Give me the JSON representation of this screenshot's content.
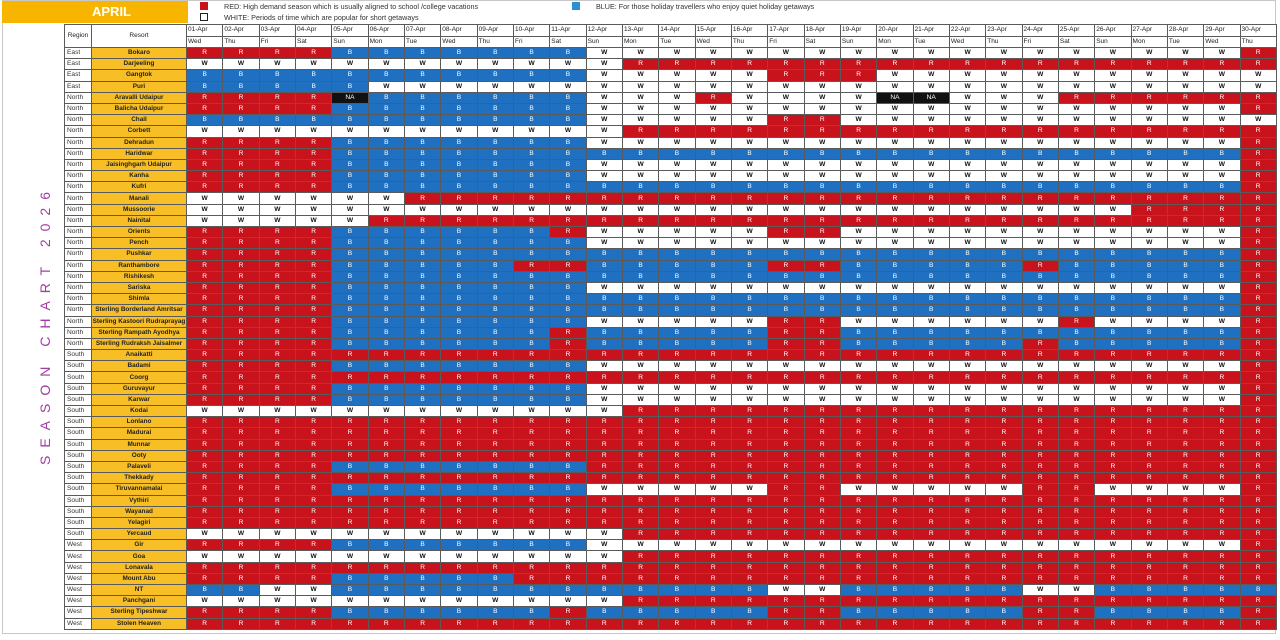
{
  "month": "APRIL",
  "legend": {
    "red": "RED: High demand season which is usually aligned to school /college vacations",
    "blue": "BLUE: For those holiday travellers who enjoy quiet holiday getaways",
    "white": "WHITE: Periods of time which are popular for short getaways"
  },
  "side_title": "SEASON CHART 2026",
  "colors": {
    "R": "#c8121c",
    "B": "#1f70c1",
    "W": "#ffffff",
    "NA": "#111111",
    "header_gold": "#f7b500",
    "resort_gold": "#f7be26"
  },
  "header": {
    "region": "Region",
    "resort": "Resort"
  },
  "dates": [
    "01-Apr",
    "02-Apr",
    "03-Apr",
    "04-Apr",
    "05-Apr",
    "06-Apr",
    "07-Apr",
    "08-Apr",
    "09-Apr",
    "10-Apr",
    "11-Apr",
    "12-Apr",
    "13-Apr",
    "14-Apr",
    "15-Apr",
    "16-Apr",
    "17-Apr",
    "18-Apr",
    "19-Apr",
    "20-Apr",
    "21-Apr",
    "22-Apr",
    "23-Apr",
    "24-Apr",
    "25-Apr",
    "26-Apr",
    "27-Apr",
    "28-Apr",
    "29-Apr",
    "30-Apr"
  ],
  "days": [
    "Wed",
    "Thu",
    "Fri",
    "Sat",
    "Sun",
    "Mon",
    "Tue",
    "Wed",
    "Thu",
    "Fri",
    "Sat",
    "Sun",
    "Mon",
    "Tue",
    "Wed",
    "Thu",
    "Fri",
    "Sat",
    "Sun",
    "Mon",
    "Tue",
    "Wed",
    "Thu",
    "Fri",
    "Sat",
    "Sun",
    "Mon",
    "Tue",
    "Wed",
    "Thu"
  ],
  "rows": [
    {
      "region": "East",
      "resort": "Bokaro",
      "cells": "R R R R B B B B B B B W W W W W W W W W W W W W W W W W W R"
    },
    {
      "region": "East",
      "resort": "Darjeeling",
      "cells": "W W W W W W W W W W W W R R R R R R R R R R R R R R R R R R"
    },
    {
      "region": "East",
      "resort": "Gangtok",
      "cells": "B B B B B B B B B B B W W W W W R R R W W W W W W W W W W W"
    },
    {
      "region": "East",
      "resort": "Puri",
      "cells": "B B B B B W W W W W W W W W W W W W W W W W W W W W W W W W"
    },
    {
      "region": "North",
      "resort": "Aravalli Udaipur",
      "cells": "R R R R NA B B B B B B W W W R W W W W NA NA W W W R R R R R R"
    },
    {
      "region": "North",
      "resort": "Balicha Udaipur",
      "cells": "R R R R B B B B B B B W W W W W W W W W W W W W W W W W W R"
    },
    {
      "region": "North",
      "resort": "Chail",
      "cells": "B B B B B B B B B B B W W W W W R R W W W W W W W W W W W W"
    },
    {
      "region": "North",
      "resort": "Corbett",
      "cells": "W W W W W W W W W W W W R R R R R R R R R R R R R R R R R R"
    },
    {
      "region": "North",
      "resort": "Dehradun",
      "cells": "R R R R B B B B B B B W W W W W W W W W W W W W W W W W W R"
    },
    {
      "region": "North",
      "resort": "Haridwar",
      "cells": "R R R R B B B B B B B B B B B B B B B B B B B B B B B B B R"
    },
    {
      "region": "North",
      "resort": "Jaisinghgarh Udaipur",
      "cells": "R R R R B B B B B B B W W W W W W W W W W W W W W W W W W R"
    },
    {
      "region": "North",
      "resort": "Kanha",
      "cells": "R R R R B B B B B B B W W W W W W W W W W W W W W W W W W R"
    },
    {
      "region": "North",
      "resort": "Kufri",
      "cells": "R R R R B B B B B B B B B B B B B B B B B B B B B B B B B R"
    },
    {
      "region": "North",
      "resort": "Manali",
      "cells": "W W W W W W R R R R R R R R R R R R R R R R R R R R R R R R"
    },
    {
      "region": "North",
      "resort": "Mussoorie",
      "cells": "W W W W W W W W W W W W W W W W W W W W W W W W W W R R R R"
    },
    {
      "region": "North",
      "resort": "Nainital",
      "cells": "W W W W W R R R R R R R R R R R R R R R R R R R R R R R R R"
    },
    {
      "region": "North",
      "resort": "Orients",
      "cells": "R R R R B B B B B B R W W W W W R R W W W W W W W W W W W R"
    },
    {
      "region": "North",
      "resort": "Pench",
      "cells": "R R R R B B B B B B B W W W W W W W W W W W W W W W W W W R"
    },
    {
      "region": "North",
      "resort": "Pushkar",
      "cells": "R R R R B B B B B B B B B B B B B B B B B B B B B B B B B R"
    },
    {
      "region": "North",
      "resort": "Ranthambore",
      "cells": "R R R R B B B B B R R B B B B B R R B B B B B R B B B B B R"
    },
    {
      "region": "North",
      "resort": "Rishikesh",
      "cells": "R R R R B B B B B B B B B B B B B B B B B B B B B B B B B R"
    },
    {
      "region": "North",
      "resort": "Sariska",
      "cells": "R R R R B B B B B B B W W W W W W W W W W W W W W W W W W R"
    },
    {
      "region": "North",
      "resort": "Shimla",
      "cells": "R R R R B B B B B B B B B B B B B B B B B B B B B B B B B R"
    },
    {
      "region": "North",
      "resort": "Sterling Borderland Amritsar",
      "cells": "R R R R B B B B B B B B B B B B B B B B B B B B B B B B B R"
    },
    {
      "region": "North",
      "resort": "Sterling Kastoori Rudraprayag",
      "cells": "R R R R B B B B B B B W W W W W R R W W W W W W R W W W W R"
    },
    {
      "region": "North",
      "resort": "Sterling Rampath Ayodhya",
      "cells": "R R R R B B B B B B R B B B B B R R B B B B B B B B B B B R"
    },
    {
      "region": "North",
      "resort": "Sterling Rudraksh Jaisalmer",
      "cells": "R R R R B B B B B B R B B B B B R R B B B B B R B B B B B R"
    },
    {
      "region": "South",
      "resort": "Anaikatti",
      "cells": "R R R R R R R R R R R R R R R R R R R R R R R R R R R R R R"
    },
    {
      "region": "South",
      "resort": "Badami",
      "cells": "R R R R B B B B B B B W W W W W W W W W W W W W W W W W W R"
    },
    {
      "region": "South",
      "resort": "Coorg",
      "cells": "R R R R R R R R R R R R R R R R R R R R R R R R R R R R R R"
    },
    {
      "region": "South",
      "resort": "Guruvayur",
      "cells": "R R R R B B B B B B B W W W W W W W W W W W W W W W W W W R"
    },
    {
      "region": "South",
      "resort": "Karwar",
      "cells": "R R R R B B B B B B B W W W W W W W W W W W W W W W W W W R"
    },
    {
      "region": "South",
      "resort": "Kodai",
      "cells": "W W W W W W W W W W W W R R R R R R R R R R R R R R R R R R"
    },
    {
      "region": "South",
      "resort": "Lonlano",
      "cells": "R R R R R R R R R R R R R R R R R R R R R R R R R R R R R R"
    },
    {
      "region": "South",
      "resort": "Madurai",
      "cells": "R R R R R R R R R R R R R R R R R R R R R R R R R R R R R R"
    },
    {
      "region": "South",
      "resort": "Munnar",
      "cells": "R R R R R R R R R R R R R R R R R R R R R R R R R R R R R R"
    },
    {
      "region": "South",
      "resort": "Ooty",
      "cells": "R R R R R R R R R R R R R R R R R R R R R R R R R R R R R R"
    },
    {
      "region": "South",
      "resort": "Palaveli",
      "cells": "R R R R B B B B B B B R R R R R R R R R R R R R R R R R R R"
    },
    {
      "region": "South",
      "resort": "Thekkady",
      "cells": "R R R R R R R R R R R R R R R R R R R R R R R R R R R R R R"
    },
    {
      "region": "South",
      "resort": "Tiruvannamalai",
      "cells": "R R R R B B B B B B B W W W W W R R W W W W W R R W W W W R"
    },
    {
      "region": "South",
      "resort": "Vythiri",
      "cells": "R R R R R R R R R R R R R R R R R R R R R R R R R R R R R R"
    },
    {
      "region": "South",
      "resort": "Wayanad",
      "cells": "R R R R R R R R R R R R R R R R R R R R R R R R R R R R R R"
    },
    {
      "region": "South",
      "resort": "Yelagiri",
      "cells": "R R R R R R R R R R R R R R R R R R R R R R R R R R R R R R"
    },
    {
      "region": "South",
      "resort": "Yercaud",
      "cells": "W W W W W W W W W W W W R R R R R R R R R R R R R R R R R R"
    },
    {
      "region": "West",
      "resort": "Gir",
      "cells": "R R R R B B B B B B B W W W W W W W W W W W W W W W W W W R"
    },
    {
      "region": "West",
      "resort": "Goa",
      "cells": "W W W W W W W W W W W W R R R R R R R R R R R R R R R R R R"
    },
    {
      "region": "West",
      "resort": "Lonavala",
      "cells": "R R R R R R R R R R R R R R R R R R R R R R R R R R R R R R"
    },
    {
      "region": "West",
      "resort": "Mount Abu",
      "cells": "R R R R B B B B B R R R R R R R R R R R R R R R R R R R R R"
    },
    {
      "region": "West",
      "resort": "NT",
      "cells": "B B W W B B B B B B B B B B B B W W B B B B B W W B B B B B"
    },
    {
      "region": "West",
      "resort": "Panchgani",
      "cells": "W W W W W W W W W W W W R R R R R R R R R R R R R R R R R R"
    },
    {
      "region": "West",
      "resort": "Sterling Tipeshwar",
      "cells": "R R R R B B B B B B R B B B B B R R B B B B B R R B B B B R"
    },
    {
      "region": "West",
      "resort": "Stolen Heaven",
      "cells": "R R R R R R R R R R R R R R R R R R R R R R R R R R R R R R"
    }
  ]
}
